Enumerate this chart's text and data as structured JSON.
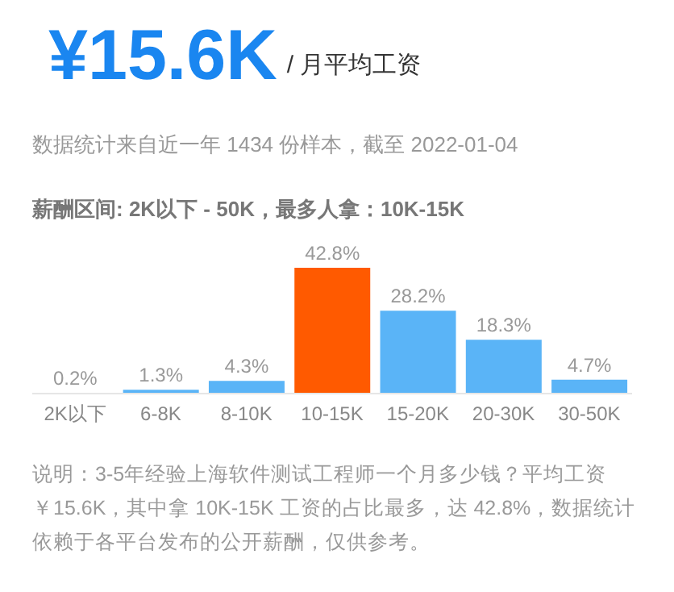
{
  "chart_data": {
    "type": "bar",
    "title": "¥15.6K",
    "subtitle": "/ 月平均工资",
    "annotations": [
      "数据统计来自近一年 1434 份样本，截至 2022-01-04",
      "薪酬区间: 2K以下 - 50K，最多人拿：10K-15K",
      "说明：3-5年经验上海软件测试工程师一个月多少钱？平均工资￥15.6K，其中拿 10K-15K 工资的占比最多，达 42.8%，数据统计依赖于各平台发布的公开薪酬，仅供参考。"
    ],
    "categories": [
      "2K以下",
      "6-8K",
      "8-10K",
      "10-15K",
      "15-20K",
      "20-30K",
      "30-50K"
    ],
    "values": [
      0.2,
      1.3,
      4.3,
      42.8,
      28.2,
      18.3,
      4.7
    ],
    "colors": [
      "#5ab4f7",
      "#5ab4f7",
      "#5ab4f7",
      "#ff5a00",
      "#5ab4f7",
      "#5ab4f7",
      "#5ab4f7"
    ],
    "value_labels": [
      "0.2%",
      "1.3%",
      "4.3%",
      "42.8%",
      "28.2%",
      "18.3%",
      "4.7%"
    ],
    "data_labels": true
  }
}
